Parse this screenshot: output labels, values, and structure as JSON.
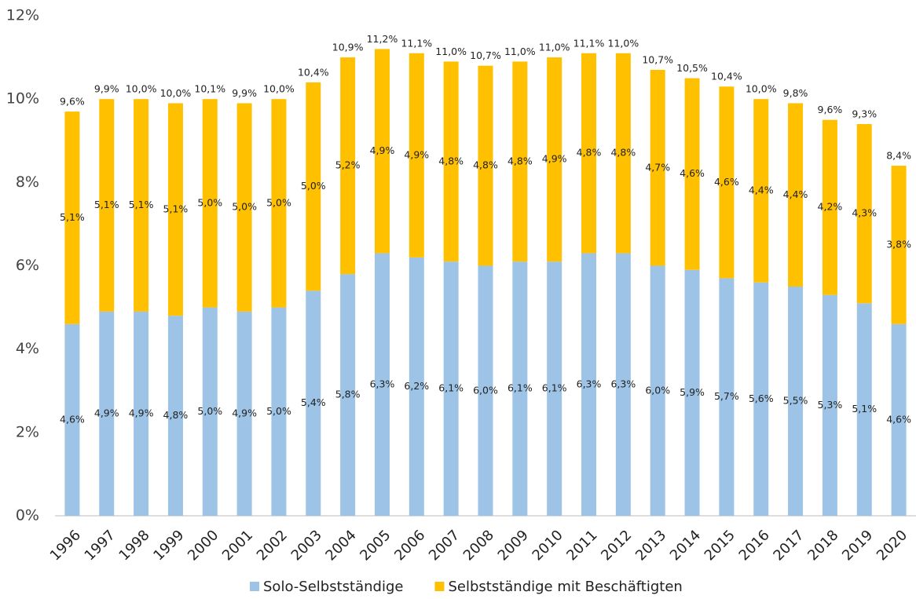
{
  "chart_data": {
    "type": "stacked-bar",
    "categories": [
      "1996",
      "1997",
      "1998",
      "1999",
      "2000",
      "2001",
      "2002",
      "2003",
      "2004",
      "2005",
      "2006",
      "2007",
      "2008",
      "2009",
      "2010",
      "2011",
      "2012",
      "2013",
      "2014",
      "2015",
      "2016",
      "2017",
      "2018",
      "2019",
      "2020"
    ],
    "series": [
      {
        "name": "Solo-Selbstständige",
        "color": "#9dc3e6",
        "values": [
          4.6,
          4.9,
          4.9,
          4.8,
          5.0,
          4.9,
          5.0,
          5.4,
          5.8,
          6.3,
          6.2,
          6.1,
          6.0,
          6.1,
          6.1,
          6.3,
          6.3,
          6.0,
          5.9,
          5.7,
          5.6,
          5.5,
          5.3,
          5.1,
          4.6
        ],
        "value_labels": [
          "4,6%",
          "4,9%",
          "4,9%",
          "4,8%",
          "5,0%",
          "4,9%",
          "5,0%",
          "5,4%",
          "5,8%",
          "6,3%",
          "6,2%",
          "6,1%",
          "6,0%",
          "6,1%",
          "6,1%",
          "6,3%",
          "6,3%",
          "6,0%",
          "5,9%",
          "5,7%",
          "5,6%",
          "5,5%",
          "5,3%",
          "5,1%",
          "4,6%"
        ]
      },
      {
        "name": "Selbstständige mit Beschäftigten",
        "color": "#ffc000",
        "values": [
          5.1,
          5.1,
          5.1,
          5.1,
          5.0,
          5.0,
          5.0,
          5.0,
          5.2,
          4.9,
          4.9,
          4.8,
          4.8,
          4.8,
          4.9,
          4.8,
          4.8,
          4.7,
          4.6,
          4.6,
          4.4,
          4.4,
          4.2,
          4.3,
          3.8
        ],
        "value_labels": [
          "5,1%",
          "5,1%",
          "5,1%",
          "5,1%",
          "5,0%",
          "5,0%",
          "5,0%",
          "5,0%",
          "5,2%",
          "4,9%",
          "4,9%",
          "4,8%",
          "4,8%",
          "4,8%",
          "4,9%",
          "4,8%",
          "4,8%",
          "4,7%",
          "4,6%",
          "4,6%",
          "4,4%",
          "4,4%",
          "4,2%",
          "4,3%",
          "3,8%"
        ]
      }
    ],
    "totals": {
      "values": [
        9.6,
        9.9,
        10.0,
        10.0,
        10.1,
        9.9,
        10.0,
        10.4,
        10.9,
        11.2,
        11.1,
        11.0,
        10.7,
        11.0,
        11.0,
        11.1,
        11.0,
        10.7,
        10.5,
        10.4,
        10.0,
        9.8,
        9.6,
        9.3,
        8.4
      ],
      "value_labels": [
        "9,6%",
        "9,9%",
        "10,0%",
        "10,0%",
        "10,1%",
        "9,9%",
        "10,0%",
        "10,4%",
        "10,9%",
        "11,2%",
        "11,1%",
        "11,0%",
        "10,7%",
        "11,0%",
        "11,0%",
        "11,1%",
        "11,0%",
        "10,7%",
        "10,5%",
        "10,4%",
        "10,0%",
        "9,8%",
        "9,6%",
        "9,3%",
        "8,4%"
      ]
    },
    "ylim": [
      0,
      12
    ],
    "yticks": [
      {
        "value": 0,
        "label": "0%"
      },
      {
        "value": 2,
        "label": "2%"
      },
      {
        "value": 4,
        "label": "4%"
      },
      {
        "value": 6,
        "label": "6%"
      },
      {
        "value": 8,
        "label": "8%"
      },
      {
        "value": 10,
        "label": "10%"
      },
      {
        "value": 12,
        "label": "12%"
      }
    ],
    "grid": false,
    "legend": "bottom"
  }
}
